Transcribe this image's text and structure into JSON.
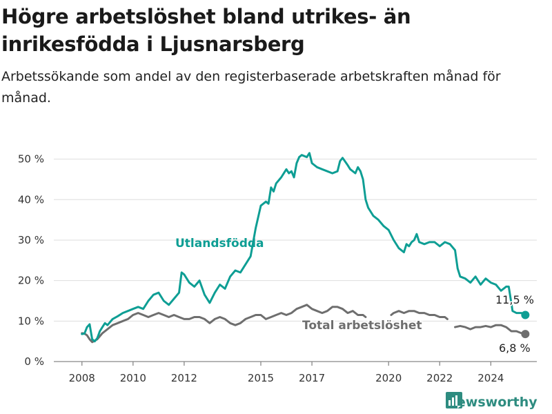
{
  "header": {
    "title": "Högre arbetslöshet bland utrikes- än inrikesfödda i Ljusnarsberg",
    "subtitle": "Arbetssökande som andel av den registerbaserade arbetskraften månad för månad."
  },
  "branding": {
    "logo_text": "Newsworthy",
    "logo_icon": "bar-chart-icon"
  },
  "colors": {
    "foreign_born": "#0e9e94",
    "total": "#6e6e6e",
    "grid": "#dddddd",
    "brand": "#2e8c80"
  },
  "chart_data": {
    "type": "line",
    "x_ticks": [
      2008,
      2010,
      2012,
      2015,
      2017,
      2020,
      2022,
      2024
    ],
    "y_ticks": [
      0,
      10,
      20,
      30,
      40,
      50
    ],
    "y_tick_labels": [
      "0 %",
      "10 %",
      "20 %",
      "30 %",
      "40 %",
      "50 %"
    ],
    "xlim": [
      2006.9,
      2025.8
    ],
    "ylim": [
      0,
      53
    ],
    "grid": true,
    "series": [
      {
        "name": "Utlandsfödda",
        "color": "#0e9e94",
        "end_label": "11,5 %",
        "points": [
          [
            2008.0,
            6.8
          ],
          [
            2008.1,
            6.9
          ],
          [
            2008.2,
            8.5
          ],
          [
            2008.3,
            9.2
          ],
          [
            2008.4,
            5.5
          ],
          [
            2008.5,
            5.0
          ],
          [
            2008.6,
            5.8
          ],
          [
            2008.7,
            7.5
          ],
          [
            2008.8,
            8.5
          ],
          [
            2008.9,
            9.5
          ],
          [
            2009.0,
            9.0
          ],
          [
            2009.2,
            10.5
          ],
          [
            2009.4,
            11.2
          ],
          [
            2009.6,
            12.0
          ],
          [
            2009.8,
            12.5
          ],
          [
            2010.0,
            13.0
          ],
          [
            2010.2,
            13.5
          ],
          [
            2010.4,
            13.0
          ],
          [
            2010.6,
            15.0
          ],
          [
            2010.8,
            16.5
          ],
          [
            2011.0,
            17.0
          ],
          [
            2011.2,
            15.0
          ],
          [
            2011.4,
            14.0
          ],
          [
            2011.6,
            15.5
          ],
          [
            2011.8,
            17.0
          ],
          [
            2011.9,
            22.0
          ],
          [
            2012.0,
            21.5
          ],
          [
            2012.2,
            19.5
          ],
          [
            2012.4,
            18.5
          ],
          [
            2012.6,
            20.0
          ],
          [
            2012.8,
            16.5
          ],
          [
            2013.0,
            14.5
          ],
          [
            2013.2,
            17.0
          ],
          [
            2013.4,
            19.0
          ],
          [
            2013.6,
            18.0
          ],
          [
            2013.8,
            21.0
          ],
          [
            2014.0,
            22.5
          ],
          [
            2014.2,
            22.0
          ],
          [
            2014.4,
            24.0
          ],
          [
            2014.6,
            26.0
          ],
          [
            2014.8,
            33.0
          ],
          [
            2015.0,
            38.5
          ],
          [
            2015.2,
            39.5
          ],
          [
            2015.3,
            39.0
          ],
          [
            2015.4,
            43.0
          ],
          [
            2015.5,
            42.0
          ],
          [
            2015.6,
            44.0
          ],
          [
            2015.8,
            45.5
          ],
          [
            2016.0,
            47.5
          ],
          [
            2016.1,
            46.5
          ],
          [
            2016.2,
            47.0
          ],
          [
            2016.3,
            45.5
          ],
          [
            2016.4,
            49.0
          ],
          [
            2016.5,
            50.5
          ],
          [
            2016.6,
            51.0
          ],
          [
            2016.8,
            50.5
          ],
          [
            2016.9,
            51.5
          ],
          [
            2017.0,
            49.0
          ],
          [
            2017.2,
            48.0
          ],
          [
            2017.4,
            47.5
          ],
          [
            2017.6,
            47.0
          ],
          [
            2017.8,
            46.5
          ],
          [
            2018.0,
            47.0
          ],
          [
            2018.1,
            49.5
          ],
          [
            2018.2,
            50.3
          ],
          [
            2018.4,
            48.5
          ],
          [
            2018.5,
            47.5
          ],
          [
            2018.7,
            46.5
          ],
          [
            2018.8,
            48.0
          ],
          [
            2018.9,
            47.0
          ],
          [
            2019.0,
            45.0
          ],
          [
            2019.1,
            40.0
          ],
          [
            2019.2,
            38.0
          ],
          [
            2019.4,
            36.0
          ],
          [
            2019.6,
            35.0
          ],
          [
            2019.8,
            33.5
          ],
          [
            2020.0,
            32.5
          ],
          [
            2020.2,
            30.0
          ],
          [
            2020.4,
            28.0
          ],
          [
            2020.6,
            27.0
          ],
          [
            2020.7,
            29.0
          ],
          [
            2020.8,
            28.5
          ],
          [
            2020.9,
            29.5
          ],
          [
            2021.0,
            30.0
          ],
          [
            2021.1,
            31.5
          ],
          [
            2021.2,
            29.5
          ],
          [
            2021.4,
            29.0
          ],
          [
            2021.6,
            29.5
          ],
          [
            2021.8,
            29.5
          ],
          [
            2022.0,
            28.5
          ],
          [
            2022.2,
            29.5
          ],
          [
            2022.4,
            29.0
          ],
          [
            2022.6,
            27.5
          ],
          [
            2022.7,
            23.0
          ],
          [
            2022.8,
            21.0
          ],
          [
            2023.0,
            20.5
          ],
          [
            2023.2,
            19.5
          ],
          [
            2023.4,
            21.0
          ],
          [
            2023.6,
            19.0
          ],
          [
            2023.8,
            20.5
          ],
          [
            2024.0,
            19.5
          ],
          [
            2024.2,
            19.0
          ],
          [
            2024.4,
            17.5
          ],
          [
            2024.6,
            18.5
          ],
          [
            2024.7,
            18.5
          ],
          [
            2024.8,
            14.5
          ],
          [
            2024.85,
            12.5
          ],
          [
            2025.0,
            12.0
          ],
          [
            2025.2,
            12.0
          ],
          [
            2025.35,
            11.5
          ]
        ]
      },
      {
        "name": "Total arbetslöshet",
        "color": "#6e6e6e",
        "end_label": "6,8 %",
        "segments": [
          [
            [
              2008.0,
              7.0
            ],
            [
              2008.1,
              6.9
            ],
            [
              2008.2,
              6.5
            ],
            [
              2008.3,
              5.5
            ],
            [
              2008.4,
              4.8
            ],
            [
              2008.6,
              5.5
            ],
            [
              2008.8,
              7.0
            ],
            [
              2009.0,
              8.0
            ],
            [
              2009.2,
              9.0
            ],
            [
              2009.4,
              9.5
            ],
            [
              2009.6,
              10.0
            ],
            [
              2009.8,
              10.5
            ],
            [
              2010.0,
              11.5
            ],
            [
              2010.2,
              12.0
            ],
            [
              2010.4,
              11.5
            ],
            [
              2010.6,
              11.0
            ],
            [
              2010.8,
              11.5
            ],
            [
              2011.0,
              12.0
            ],
            [
              2011.2,
              11.5
            ],
            [
              2011.4,
              11.0
            ],
            [
              2011.6,
              11.5
            ],
            [
              2011.8,
              11.0
            ],
            [
              2012.0,
              10.5
            ],
            [
              2012.2,
              10.5
            ],
            [
              2012.4,
              11.0
            ],
            [
              2012.6,
              11.0
            ],
            [
              2012.8,
              10.5
            ],
            [
              2013.0,
              9.5
            ],
            [
              2013.2,
              10.5
            ],
            [
              2013.4,
              11.0
            ],
            [
              2013.6,
              10.5
            ],
            [
              2013.8,
              9.5
            ],
            [
              2014.0,
              9.0
            ],
            [
              2014.2,
              9.5
            ],
            [
              2014.4,
              10.5
            ],
            [
              2014.6,
              11.0
            ],
            [
              2014.8,
              11.5
            ],
            [
              2015.0,
              11.5
            ],
            [
              2015.2,
              10.5
            ],
            [
              2015.4,
              11.0
            ],
            [
              2015.6,
              11.5
            ],
            [
              2015.8,
              12.0
            ],
            [
              2016.0,
              11.5
            ],
            [
              2016.2,
              12.0
            ],
            [
              2016.4,
              13.0
            ],
            [
              2016.6,
              13.5
            ],
            [
              2016.8,
              14.0
            ],
            [
              2017.0,
              13.0
            ],
            [
              2017.2,
              12.5
            ],
            [
              2017.4,
              12.0
            ],
            [
              2017.6,
              12.5
            ],
            [
              2017.8,
              13.5
            ],
            [
              2018.0,
              13.5
            ],
            [
              2018.2,
              13.0
            ],
            [
              2018.4,
              12.0
            ],
            [
              2018.6,
              12.5
            ],
            [
              2018.8,
              11.5
            ],
            [
              2019.0,
              11.5
            ],
            [
              2019.1,
              11.0
            ]
          ],
          [
            [
              2020.1,
              11.5
            ],
            [
              2020.2,
              12.0
            ],
            [
              2020.4,
              12.5
            ],
            [
              2020.6,
              12.0
            ],
            [
              2020.8,
              12.5
            ],
            [
              2021.0,
              12.5
            ],
            [
              2021.2,
              12.0
            ],
            [
              2021.4,
              12.0
            ],
            [
              2021.6,
              11.5
            ],
            [
              2021.8,
              11.5
            ],
            [
              2022.0,
              11.0
            ],
            [
              2022.2,
              11.0
            ],
            [
              2022.3,
              10.5
            ]
          ],
          [
            [
              2022.6,
              8.5
            ],
            [
              2022.8,
              8.8
            ],
            [
              2023.0,
              8.5
            ],
            [
              2023.2,
              8.0
            ],
            [
              2023.4,
              8.5
            ],
            [
              2023.6,
              8.5
            ],
            [
              2023.8,
              8.8
            ],
            [
              2024.0,
              8.5
            ],
            [
              2024.2,
              9.0
            ],
            [
              2024.4,
              9.0
            ],
            [
              2024.6,
              8.5
            ],
            [
              2024.8,
              7.5
            ],
            [
              2025.0,
              7.5
            ],
            [
              2025.2,
              7.0
            ],
            [
              2025.35,
              6.8
            ]
          ]
        ]
      }
    ]
  }
}
